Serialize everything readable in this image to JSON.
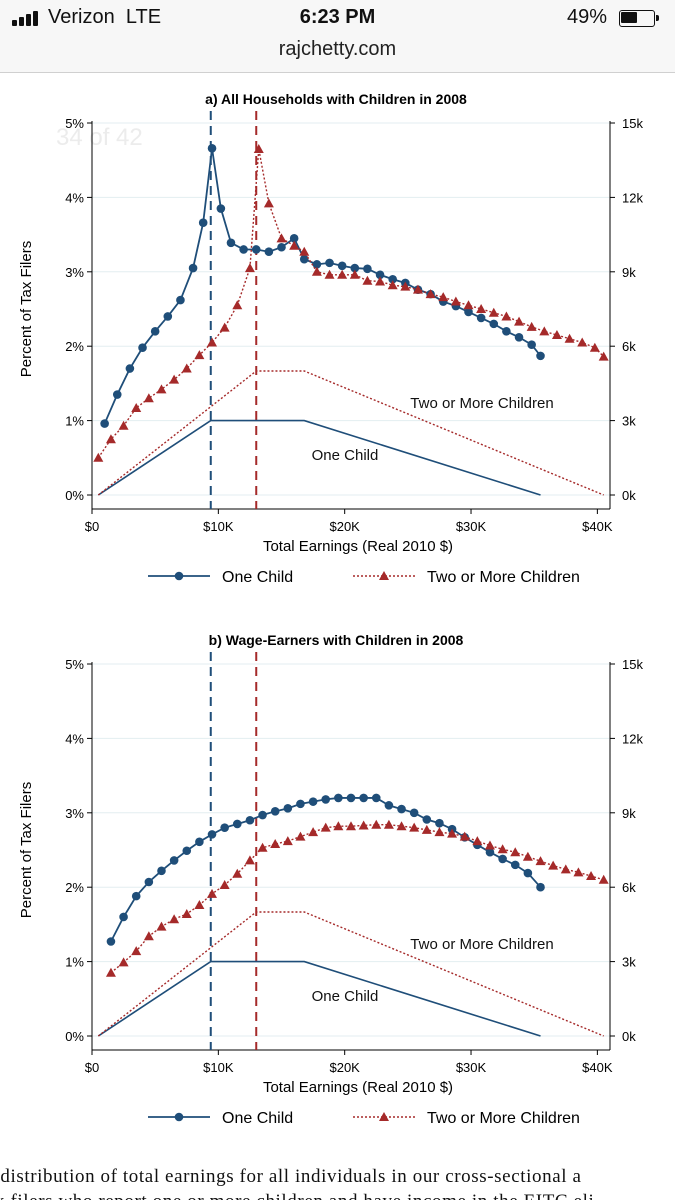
{
  "status_bar": {
    "carrier": "Verizon",
    "network": "LTE",
    "time": "6:23 PM",
    "battery_percent": "49%"
  },
  "browser": {
    "url": "rajchetty.com",
    "page_counter": "34 of 42"
  },
  "colors": {
    "one_child": "#1f4e79",
    "two_more": "#a52a2a",
    "gridline": "#e3eef0",
    "axis": "#000000"
  },
  "chart_data": [
    {
      "type": "line",
      "title": "a) All Households with Children in 2008",
      "xlabel": "Total Earnings (Real 2010 $)",
      "ylabel": "Percent of Tax Filers",
      "xlim": [
        0,
        41000
      ],
      "ylim": [
        0,
        5
      ],
      "y2lim": [
        0,
        15
      ],
      "x_ticks": [
        0,
        10000,
        20000,
        30000,
        40000
      ],
      "x_tick_labels": [
        "$0",
        "$10K",
        "$20K",
        "$30K",
        "$40K"
      ],
      "y_ticks": [
        0,
        1,
        2,
        3,
        4,
        5
      ],
      "y_tick_labels": [
        "0%",
        "1%",
        "2%",
        "3%",
        "4%",
        "5%"
      ],
      "y2_ticks": [
        0,
        3,
        6,
        9,
        12,
        15
      ],
      "y2_tick_labels": [
        "0k",
        "3k",
        "6k",
        "9k",
        "12k",
        "15k"
      ],
      "grid": true,
      "legend": "bottom",
      "vlines": [
        9400,
        13000
      ],
      "series": [
        {
          "name": "One Child",
          "style": "solid-circle",
          "x": [
            1000,
            2000,
            3000,
            4000,
            5000,
            6000,
            7000,
            8000,
            8800,
            9500,
            10200,
            11000,
            12000,
            13000,
            14000,
            15000,
            16000,
            16800,
            17800,
            18800,
            19800,
            20800,
            21800,
            22800,
            23800,
            24800,
            25800,
            26800,
            27800,
            28800,
            29800,
            30800,
            31800,
            32800,
            33800,
            34800,
            35500
          ],
          "y": [
            0.96,
            1.35,
            1.7,
            1.98,
            2.2,
            2.4,
            2.62,
            3.05,
            3.66,
            4.66,
            3.85,
            3.39,
            3.3,
            3.3,
            3.27,
            3.33,
            3.45,
            3.17,
            3.1,
            3.12,
            3.08,
            3.05,
            3.04,
            2.96,
            2.9,
            2.85,
            2.76,
            2.7,
            2.6,
            2.54,
            2.46,
            2.38,
            2.3,
            2.2,
            2.12,
            2.02,
            1.87
          ]
        },
        {
          "name": "Two or More Children",
          "style": "dotted-triangle",
          "x": [
            500,
            1500,
            2500,
            3500,
            4500,
            5500,
            6500,
            7500,
            8500,
            9500,
            10500,
            11500,
            12500,
            13200,
            14000,
            15000,
            16000,
            16800,
            17800,
            18800,
            19800,
            20800,
            21800,
            22800,
            23800,
            24800,
            25800,
            26800,
            27800,
            28800,
            29800,
            30800,
            31800,
            32800,
            33800,
            34800,
            35800,
            36800,
            37800,
            38800,
            39800,
            40500
          ],
          "y": [
            0.5,
            0.75,
            0.93,
            1.17,
            1.3,
            1.42,
            1.55,
            1.7,
            1.88,
            2.05,
            2.25,
            2.55,
            3.05,
            4.65,
            3.92,
            3.45,
            3.35,
            3.27,
            3.0,
            2.96,
            2.96,
            2.96,
            2.88,
            2.87,
            2.82,
            2.8,
            2.76,
            2.7,
            2.66,
            2.6,
            2.55,
            2.5,
            2.45,
            2.4,
            2.33,
            2.26,
            2.2,
            2.15,
            2.1,
            2.05,
            1.98,
            1.86
          ]
        },
        {
          "name": "One Child",
          "role": "schedule",
          "axis": "right",
          "label": "One Child",
          "x": [
            500,
            9400,
            16800,
            35500
          ],
          "y": [
            0,
            3,
            3,
            0
          ]
        },
        {
          "name": "Two or More Children",
          "role": "schedule",
          "axis": "right",
          "label": "Two or More Children",
          "x": [
            500,
            13000,
            16800,
            40500
          ],
          "y": [
            0,
            5,
            5,
            0
          ]
        }
      ]
    },
    {
      "type": "line",
      "title": "b) Wage-Earners with Children in 2008",
      "xlabel": "Total Earnings (Real 2010 $)",
      "ylabel": "Percent of Tax Filers",
      "xlim": [
        0,
        41000
      ],
      "ylim": [
        0,
        5
      ],
      "y2lim": [
        0,
        15
      ],
      "x_ticks": [
        0,
        10000,
        20000,
        30000,
        40000
      ],
      "x_tick_labels": [
        "$0",
        "$10K",
        "$20K",
        "$30K",
        "$40K"
      ],
      "y_ticks": [
        0,
        1,
        2,
        3,
        4,
        5
      ],
      "y_tick_labels": [
        "0%",
        "1%",
        "2%",
        "3%",
        "4%",
        "5%"
      ],
      "y2_ticks": [
        0,
        3,
        6,
        9,
        12,
        15
      ],
      "y2_tick_labels": [
        "0k",
        "3k",
        "6k",
        "9k",
        "12k",
        "15k"
      ],
      "grid": true,
      "legend": "bottom",
      "vlines": [
        9400,
        13000
      ],
      "series": [
        {
          "name": "One Child",
          "style": "solid-circle",
          "x": [
            1500,
            2500,
            3500,
            4500,
            5500,
            6500,
            7500,
            8500,
            9500,
            10500,
            11500,
            12500,
            13500,
            14500,
            15500,
            16500,
            17500,
            18500,
            19500,
            20500,
            21500,
            22500,
            23500,
            24500,
            25500,
            26500,
            27500,
            28500,
            29500,
            30500,
            31500,
            32500,
            33500,
            34500,
            35500
          ],
          "y": [
            1.27,
            1.6,
            1.88,
            2.07,
            2.22,
            2.36,
            2.49,
            2.61,
            2.71,
            2.8,
            2.85,
            2.9,
            2.97,
            3.02,
            3.06,
            3.12,
            3.15,
            3.18,
            3.2,
            3.2,
            3.2,
            3.2,
            3.1,
            3.05,
            3.0,
            2.91,
            2.86,
            2.78,
            2.67,
            2.57,
            2.47,
            2.38,
            2.3,
            2.19,
            2.0
          ]
        },
        {
          "name": "Two or More Children",
          "style": "dotted-triangle",
          "x": [
            1500,
            2500,
            3500,
            4500,
            5500,
            6500,
            7500,
            8500,
            9500,
            10500,
            11500,
            12500,
            13500,
            14500,
            15500,
            16500,
            17500,
            18500,
            19500,
            20500,
            21500,
            22500,
            23500,
            24500,
            25500,
            26500,
            27500,
            28500,
            29500,
            30500,
            31500,
            32500,
            33500,
            34500,
            35500,
            36500,
            37500,
            38500,
            39500,
            40500
          ],
          "y": [
            0.85,
            0.99,
            1.14,
            1.34,
            1.47,
            1.57,
            1.64,
            1.76,
            1.91,
            2.03,
            2.18,
            2.36,
            2.53,
            2.58,
            2.62,
            2.68,
            2.74,
            2.8,
            2.82,
            2.82,
            2.83,
            2.84,
            2.84,
            2.82,
            2.8,
            2.77,
            2.74,
            2.72,
            2.68,
            2.62,
            2.56,
            2.51,
            2.47,
            2.41,
            2.35,
            2.29,
            2.24,
            2.2,
            2.15,
            2.1
          ]
        },
        {
          "name": "One Child",
          "role": "schedule",
          "axis": "right",
          "label": "One Child",
          "x": [
            500,
            9400,
            16800,
            35500
          ],
          "y": [
            0,
            3,
            3,
            0
          ]
        },
        {
          "name": "Two or More Children",
          "role": "schedule",
          "axis": "right",
          "label": "Two or More Children",
          "x": [
            500,
            13000,
            16800,
            40500
          ],
          "y": [
            0,
            5,
            5,
            0
          ]
        }
      ]
    }
  ],
  "caption": {
    "line1": "e distribution of total earnings for all individuals in our cross-sectional a",
    "line2": "ax filers who report one or more children and have income in the EITC eli"
  }
}
